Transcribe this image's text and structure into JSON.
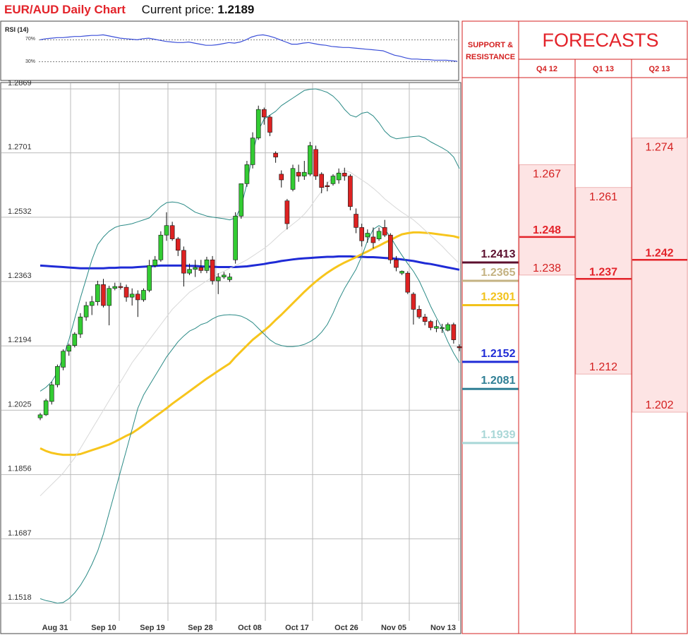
{
  "header": {
    "pair_title": "EUR/AUD Daily Chart",
    "current_label": "Current price:",
    "current_value": "1.2189"
  },
  "chart_data": [
    {
      "type": "line",
      "title": "RSI (14)",
      "y_ticks": [
        "70%",
        "30%"
      ],
      "ylim": [
        0,
        100
      ],
      "guide_levels": [
        70,
        30
      ],
      "series": [
        {
          "color": "#3b4fd8",
          "values": [
            70,
            72,
            73,
            74,
            74,
            75,
            76,
            76,
            77,
            78,
            78,
            79,
            77,
            75,
            73,
            72,
            71,
            70,
            72,
            73,
            71,
            69,
            67,
            66,
            65,
            65,
            66,
            64,
            62,
            60,
            60,
            61,
            63,
            65,
            64,
            66,
            70,
            75,
            78,
            79,
            77,
            74,
            70,
            66,
            62,
            62,
            64,
            65,
            63,
            61,
            60,
            58,
            57,
            56,
            56,
            55,
            54,
            53,
            52,
            51,
            50,
            46,
            42,
            40,
            37,
            35,
            35,
            34,
            34,
            33,
            33,
            33,
            32,
            31
          ]
        }
      ],
      "grid": false
    },
    {
      "type": "candlestick",
      "y_ticks": [
        "1.2869",
        "1.2701",
        "1.2532",
        "1.2363",
        "1.2194",
        "1.2025",
        "1.1856",
        "1.1687",
        "1.1518"
      ],
      "ylim": [
        1.1518,
        1.2869
      ],
      "x_ticks": [
        "Aug 31",
        "Sep 10",
        "Sep 19",
        "Sep 28",
        "Oct 08",
        "Oct 17",
        "Oct 26",
        "Nov 05",
        "Nov 13"
      ],
      "grid": true,
      "up_color": "#33cc33",
      "down_color": "#dd2222",
      "candles": [
        [
          1.2005,
          1.2018,
          1.1999,
          1.2013
        ],
        [
          1.2013,
          1.2055,
          1.201,
          1.205
        ],
        [
          1.2048,
          1.21,
          1.204,
          1.2092
        ],
        [
          1.2092,
          1.2145,
          1.2085,
          1.214
        ],
        [
          1.2138,
          1.2185,
          1.213,
          1.218
        ],
        [
          1.218,
          1.22,
          1.2168,
          1.2195
        ],
        [
          1.2195,
          1.223,
          1.219,
          1.2225
        ],
        [
          1.2225,
          1.228,
          1.2215,
          1.227
        ],
        [
          1.227,
          1.231,
          1.226,
          1.23
        ],
        [
          1.23,
          1.2325,
          1.2275,
          1.231
        ],
        [
          1.231,
          1.2365,
          1.23,
          1.2355
        ],
        [
          1.2355,
          1.237,
          1.2295,
          1.23
        ],
        [
          1.23,
          1.2352,
          1.2248,
          1.2345
        ],
        [
          1.2345,
          1.236,
          1.234,
          1.235
        ],
        [
          1.235,
          1.236,
          1.2342,
          1.2348
        ],
        [
          1.2348,
          1.2355,
          1.231,
          1.2322
        ],
        [
          1.2322,
          1.2345,
          1.23,
          1.233
        ],
        [
          1.233,
          1.234,
          1.227,
          1.2315
        ],
        [
          1.2315,
          1.2345,
          1.231,
          1.234
        ],
        [
          1.234,
          1.242,
          1.2335,
          1.2405
        ],
        [
          1.2405,
          1.243,
          1.24,
          1.242
        ],
        [
          1.242,
          1.2495,
          1.2415,
          1.2485
        ],
        [
          1.2485,
          1.2545,
          1.247,
          1.251
        ],
        [
          1.251,
          1.252,
          1.247,
          1.2475
        ],
        [
          1.2475,
          1.248,
          1.243,
          1.2445
        ],
        [
          1.2445,
          1.2455,
          1.235,
          1.2385
        ],
        [
          1.2385,
          1.241,
          1.238,
          1.2395
        ],
        [
          1.2395,
          1.242,
          1.2375,
          1.24
        ],
        [
          1.24,
          1.242,
          1.2385,
          1.2392
        ],
        [
          1.2392,
          1.2428,
          1.2385,
          1.242
        ],
        [
          1.242,
          1.243,
          1.2355,
          1.2365
        ],
        [
          1.2365,
          1.2385,
          1.233,
          1.2375
        ],
        [
          1.2375,
          1.2388,
          1.237,
          1.238
        ],
        [
          1.2368,
          1.2385,
          1.2362,
          1.2375
        ],
        [
          1.242,
          1.2545,
          1.241,
          1.2535
        ],
        [
          1.2535,
          1.262,
          1.2528,
          1.262
        ],
        [
          1.262,
          1.268,
          1.2612,
          1.267
        ],
        [
          1.267,
          1.2755,
          1.266,
          1.274
        ],
        [
          1.274,
          1.2825,
          1.2735,
          1.2815
        ],
        [
          1.2815,
          1.282,
          1.2775,
          1.2795
        ],
        [
          1.2795,
          1.28,
          1.2745,
          1.2755
        ],
        [
          1.27,
          1.2705,
          1.2675,
          1.269
        ],
        [
          1.2645,
          1.2655,
          1.261,
          1.263
        ],
        [
          1.2575,
          1.258,
          1.25,
          1.2515
        ],
        [
          1.2605,
          1.267,
          1.26,
          1.266
        ],
        [
          1.265,
          1.267,
          1.2625,
          1.264
        ],
        [
          1.264,
          1.268,
          1.263,
          1.265
        ],
        [
          1.2645,
          1.273,
          1.264,
          1.272
        ],
        [
          1.271,
          1.272,
          1.263,
          1.264
        ],
        [
          1.2645,
          1.265,
          1.2595,
          1.261
        ],
        [
          1.2615,
          1.2625,
          1.26,
          1.2612
        ],
        [
          1.262,
          1.2645,
          1.2615,
          1.264
        ],
        [
          1.263,
          1.266,
          1.262,
          1.2648
        ],
        [
          1.2648,
          1.2662,
          1.2628,
          1.264
        ],
        [
          1.264,
          1.2645,
          1.255,
          1.256
        ],
        [
          1.254,
          1.2555,
          1.249,
          1.2505
        ],
        [
          1.2505,
          1.2515,
          1.2455,
          1.247
        ],
        [
          1.248,
          1.25,
          1.2465,
          1.249
        ],
        [
          1.248,
          1.2505,
          1.245,
          1.2465
        ],
        [
          1.2475,
          1.2505,
          1.247,
          1.2495
        ],
        [
          1.2505,
          1.2525,
          1.248,
          1.2485
        ],
        [
          1.2485,
          1.249,
          1.241,
          1.242
        ],
        [
          1.242,
          1.243,
          1.239,
          1.24
        ],
        [
          1.2385,
          1.2392,
          1.238,
          1.239
        ],
        [
          1.2385,
          1.239,
          1.233,
          1.2335
        ],
        [
          1.233,
          1.2335,
          1.225,
          1.229
        ],
        [
          1.229,
          1.23,
          1.2265,
          1.227
        ],
        [
          1.227,
          1.2278,
          1.2248,
          1.2258
        ],
        [
          1.2258,
          1.2262,
          1.2235,
          1.2242
        ],
        [
          1.224,
          1.2262,
          1.223,
          1.2245
        ],
        [
          1.224,
          1.2252,
          1.2228,
          1.2242
        ],
        [
          1.2235,
          1.2255,
          1.2232,
          1.225
        ],
        [
          1.225,
          1.2255,
          1.22,
          1.221
        ],
        [
          1.2192,
          1.2198,
          1.218,
          1.2189
        ]
      ],
      "lines": [
        {
          "color": "#1f2bd6",
          "width": 3,
          "values": [
            1.2405,
            1.2404,
            1.2403,
            1.2402,
            1.2401,
            1.24,
            1.2399,
            1.2398,
            1.2398,
            1.2398,
            1.2398,
            1.2398,
            1.2399,
            1.2399,
            1.24,
            1.24,
            1.24,
            1.2401,
            1.2402,
            1.2403,
            1.2404,
            1.2405,
            1.2405,
            1.2405,
            1.2405,
            1.2405,
            1.2404,
            1.2404,
            1.2403,
            1.2402,
            1.2402,
            1.2401,
            1.2401,
            1.2401,
            1.2401,
            1.2402,
            1.2403,
            1.2405,
            1.2407,
            1.2409,
            1.2412,
            1.2414,
            1.2417,
            1.2419,
            1.2421,
            1.2423,
            1.2424,
            1.2425,
            1.2426,
            1.2427,
            1.2428,
            1.2428,
            1.2429,
            1.2429,
            1.2429,
            1.2428,
            1.2428,
            1.2427,
            1.2427,
            1.2426,
            1.2425,
            1.2424,
            1.2423,
            1.2421,
            1.2419,
            1.2417,
            1.2414,
            1.2411,
            1.2409,
            1.2406,
            1.2403,
            1.24,
            1.2397,
            1.2394
          ]
        },
        {
          "color": "#f7c51c",
          "width": 3,
          "values": [
            1.1925,
            1.1918,
            1.1913,
            1.191,
            1.1908,
            1.1908,
            1.1908,
            1.191,
            1.1915,
            1.192,
            1.1925,
            1.193,
            1.1935,
            1.1942,
            1.195,
            1.1958,
            1.1965,
            1.1975,
            1.1986,
            1.1997,
            1.2008,
            1.2019,
            1.203,
            1.2042,
            1.2053,
            1.2064,
            1.2075,
            1.2086,
            1.2097,
            1.2108,
            1.2118,
            1.2128,
            1.2138,
            1.2148,
            1.2165,
            1.218,
            1.2195,
            1.221,
            1.2222,
            1.2234,
            1.2247,
            1.2262,
            1.2276,
            1.2291,
            1.2306,
            1.2321,
            1.2336,
            1.235,
            1.2363,
            1.2375,
            1.2386,
            1.2396,
            1.2405,
            1.2413,
            1.242,
            1.2427,
            1.2435,
            1.2442,
            1.245,
            1.2457,
            1.2465,
            1.2472,
            1.248,
            1.2487,
            1.249,
            1.2492,
            1.2492,
            1.2491,
            1.249,
            1.2488,
            1.2486,
            1.2484,
            1.2482,
            1.2478
          ]
        },
        {
          "color": "#d8d8d8",
          "width": 1,
          "values": [
            1.18,
            1.1815,
            1.183,
            1.1845,
            1.186,
            1.188,
            1.19,
            1.1925,
            1.195,
            1.1975,
            1.2,
            1.2025,
            1.205,
            1.2075,
            1.21,
            1.2125,
            1.215,
            1.217,
            1.219,
            1.221,
            1.223,
            1.225,
            1.227,
            1.229,
            1.2305,
            1.232,
            1.2335,
            1.2345,
            1.2355,
            1.2365,
            1.2375,
            1.2383,
            1.239,
            1.2398,
            1.2405,
            1.2412,
            1.242,
            1.243,
            1.244,
            1.245,
            1.2462,
            1.2476,
            1.249,
            1.2502,
            1.2514,
            1.2526,
            1.254,
            1.2558,
            1.258,
            1.26,
            1.262,
            1.2638,
            1.265,
            1.2655,
            1.265,
            1.264,
            1.263,
            1.262,
            1.2608,
            1.2595,
            1.258,
            1.2568,
            1.2556,
            1.2545,
            1.2535,
            1.2525,
            1.2512,
            1.2498,
            1.2484,
            1.247,
            1.2456,
            1.244,
            1.2425,
            1.241
          ]
        },
        {
          "color": "#2a8a86",
          "width": 1,
          "values": [
            1.2075,
            1.2085,
            1.21,
            1.2125,
            1.2165,
            1.221,
            1.2265,
            1.232,
            1.237,
            1.242,
            1.246,
            1.248,
            1.2495,
            1.2505,
            1.251,
            1.2512,
            1.2515,
            1.252,
            1.2525,
            1.253,
            1.2545,
            1.256,
            1.257,
            1.2572,
            1.257,
            1.2565,
            1.2555,
            1.2545,
            1.254,
            1.2535,
            1.2532,
            1.253,
            1.2528,
            1.2525,
            1.253,
            1.256,
            1.262,
            1.27,
            1.276,
            1.279,
            1.28,
            1.281,
            1.2825,
            1.2835,
            1.2845,
            1.2855,
            1.2865,
            1.2868,
            1.2869,
            1.2865,
            1.286,
            1.285,
            1.2835,
            1.2815,
            1.28,
            1.2795,
            1.2805,
            1.2808,
            1.2798,
            1.278,
            1.2758,
            1.2744,
            1.2738,
            1.274,
            1.2742,
            1.2744,
            1.2745,
            1.274,
            1.273,
            1.2722,
            1.2714,
            1.2705,
            1.269,
            1.266
          ]
        },
        {
          "color": "#2a8a86",
          "width": 1,
          "values": [
            1.153,
            1.1525,
            1.1522,
            1.1518,
            1.152,
            1.153,
            1.1545,
            1.1565,
            1.159,
            1.162,
            1.1655,
            1.17,
            1.1755,
            1.181,
            1.1865,
            1.192,
            1.1975,
            1.203,
            1.2065,
            1.209,
            1.2115,
            1.214,
            1.2165,
            1.2185,
            1.2205,
            1.222,
            1.2233,
            1.224,
            1.225,
            1.2255,
            1.2265,
            1.2272,
            1.2275,
            1.2276,
            1.2275,
            1.2272,
            1.2265,
            1.2255,
            1.224,
            1.2225,
            1.221,
            1.22,
            1.2195,
            1.2192,
            1.2192,
            1.2194,
            1.2198,
            1.2205,
            1.2215,
            1.223,
            1.225,
            1.228,
            1.2315,
            1.2345,
            1.237,
            1.2395,
            1.243,
            1.247,
            1.25,
            1.251,
            1.25,
            1.248,
            1.2455,
            1.2432,
            1.241,
            1.239,
            1.2365,
            1.2332,
            1.2298,
            1.2268,
            1.224,
            1.2205,
            1.2175,
            1.215
          ]
        }
      ]
    }
  ],
  "sr_panel": {
    "title_line1": "SUPPORT &",
    "title_line2": "RESISTANCE",
    "levels": [
      {
        "label": "1.2413",
        "color": "#5c0f2e",
        "value": 1.2413
      },
      {
        "label": "1.2365",
        "color": "#c4b282",
        "value": 1.2365
      },
      {
        "label": "1.2301",
        "color": "#f2c21a",
        "value": 1.2301
      },
      {
        "label": "1.2152",
        "color": "#1f2bd6",
        "value": 1.2152
      },
      {
        "label": "1.2081",
        "color": "#2f7f95",
        "value": 1.2081
      },
      {
        "label": "1.1939",
        "color": "#a9d7d7",
        "value": 1.1939
      }
    ]
  },
  "forecasts": {
    "title": "FORECASTS",
    "columns": [
      {
        "label": "Q4 12",
        "high": "1.267",
        "mid": "1.248",
        "low": "1.238",
        "high_v": 1.267,
        "mid_v": 1.248,
        "low_v": 1.238
      },
      {
        "label": "Q1 13",
        "high": "1.261",
        "mid": "1.237",
        "low": "1.212",
        "high_v": 1.261,
        "mid_v": 1.237,
        "low_v": 1.212
      },
      {
        "label": "Q2 13",
        "high": "1.274",
        "mid": "1.242",
        "low": "1.202",
        "high_v": 1.274,
        "mid_v": 1.242,
        "low_v": 1.202
      }
    ]
  }
}
